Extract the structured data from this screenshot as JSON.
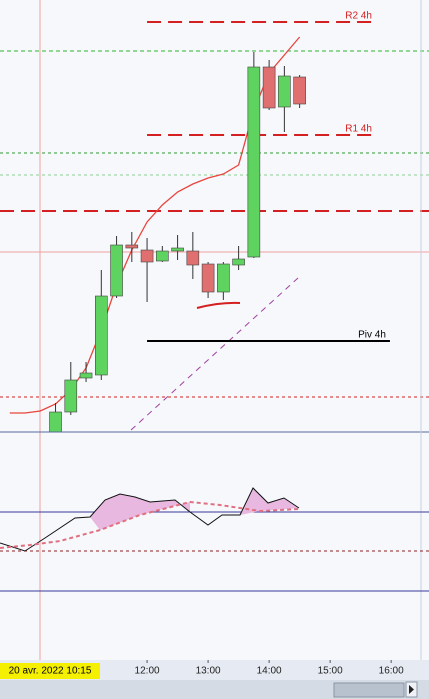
{
  "chart_data": {
    "type": "candlestick",
    "x": [
      10.5,
      10.75,
      11,
      11.25,
      11.5,
      11.75,
      12,
      12.25,
      12.5,
      12.75,
      13,
      13.25,
      13.5,
      13.75,
      14,
      14.25,
      14.5
    ],
    "open": [
      0,
      20,
      54,
      57,
      136,
      187,
      182,
      171,
      181,
      181,
      168,
      140,
      167,
      175,
      365,
      325,
      355
    ],
    "high": [
      29,
      70,
      70,
      162,
      196,
      200,
      194,
      186,
      197,
      200,
      170,
      170,
      186,
      380,
      372,
      366,
      357
    ],
    "low": [
      0,
      17,
      50,
      52,
      134,
      170,
      130,
      170,
      172,
      153,
      134,
      132,
      162,
      174,
      322,
      300,
      324
    ],
    "close": [
      20,
      52,
      59,
      136,
      187,
      184,
      170,
      181,
      184,
      167,
      140,
      168,
      173,
      365,
      324,
      356,
      328
    ],
    "up_color": "#5fd35f",
    "down_color": "#e07070",
    "moving_average": {
      "color": "#e8453c",
      "x": [
        9.75,
        10,
        10.25,
        10.5,
        10.75,
        11,
        11.25,
        11.5,
        11.75,
        12,
        12.25,
        12.5,
        12.75,
        13,
        13.25,
        13.5,
        13.75,
        14,
        14.25,
        14.5
      ],
      "values": [
        19,
        19,
        21,
        28,
        42,
        64,
        102,
        147,
        182,
        210,
        227,
        240,
        248,
        254,
        258,
        267,
        322,
        359,
        377,
        395
      ]
    },
    "levels": [
      {
        "label": "R2 4h",
        "value": 410,
        "color": "#d42020",
        "style": "dashed"
      },
      {
        "label": "R1 4h",
        "value": 297,
        "color": "#d42020",
        "style": "dashed"
      },
      {
        "label": "Piv 4h",
        "value": 91,
        "color": "#000000",
        "style": "solid"
      }
    ],
    "xlim": [
      9.59,
      16.62
    ],
    "ylim": [
      0,
      432
    ],
    "xticks": [
      {
        "value": 12,
        "label": "12:00"
      },
      {
        "value": 13,
        "label": "13:00"
      },
      {
        "value": 14,
        "label": "14:00"
      },
      {
        "value": 15,
        "label": "15:00"
      },
      {
        "value": 16,
        "label": "16:00"
      }
    ],
    "cursor_label": "20 avr. 2022 10:15"
  }
}
